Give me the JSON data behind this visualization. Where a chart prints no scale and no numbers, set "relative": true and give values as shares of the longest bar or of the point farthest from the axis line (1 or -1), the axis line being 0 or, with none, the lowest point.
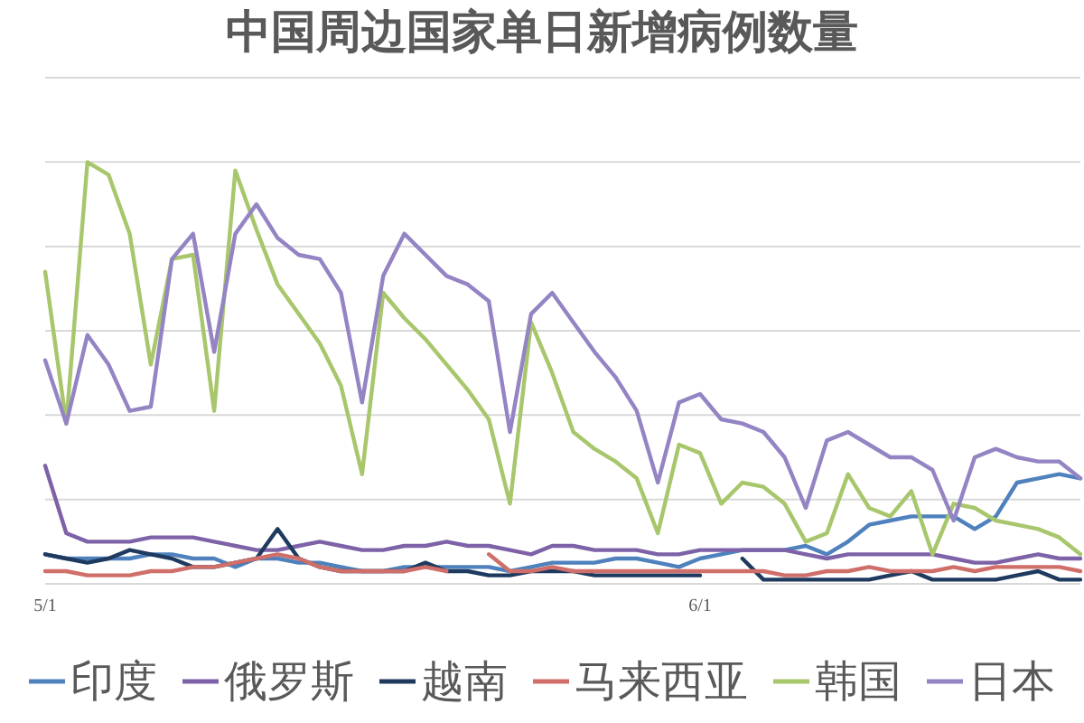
{
  "chart_data": {
    "type": "line",
    "title": "中国周边国家单日新增病例数量",
    "relative": true,
    "legend": "bottom",
    "grid": "y",
    "categories": [
      "5/1",
      null,
      null,
      null,
      null,
      null,
      null,
      null,
      null,
      null,
      null,
      null,
      null,
      null,
      null,
      null,
      null,
      null,
      null,
      null,
      null,
      null,
      null,
      null,
      null,
      null,
      null,
      null,
      null,
      null,
      null,
      "6/1",
      null,
      null,
      null,
      null,
      null,
      null,
      null,
      null,
      null,
      null,
      null,
      null,
      null,
      null,
      null,
      null,
      null,
      null
    ],
    "series": [
      {
        "name": "印度",
        "color": "#4f81bd",
        "values": [
          0.07,
          0.06,
          0.06,
          0.06,
          0.06,
          0.07,
          0.07,
          0.06,
          0.06,
          0.04,
          0.06,
          0.06,
          0.05,
          0.05,
          0.04,
          0.03,
          0.03,
          0.04,
          0.04,
          0.04,
          0.04,
          0.04,
          0.03,
          0.04,
          0.05,
          0.05,
          0.05,
          0.06,
          0.06,
          0.05,
          0.04,
          0.06,
          0.07,
          0.08,
          0.08,
          0.08,
          0.09,
          0.07,
          0.1,
          0.14,
          0.15,
          0.16,
          0.16,
          0.16,
          0.13,
          0.16,
          0.24,
          0.25,
          0.26,
          0.25
        ]
      },
      {
        "name": "俄罗斯",
        "color": "#7e62a8",
        "values": [
          0.28,
          0.12,
          0.1,
          0.1,
          0.1,
          0.11,
          0.11,
          0.11,
          0.1,
          0.09,
          0.08,
          0.08,
          0.09,
          0.1,
          0.09,
          0.08,
          0.08,
          0.09,
          0.09,
          0.1,
          0.09,
          0.09,
          0.08,
          0.07,
          0.09,
          0.09,
          0.08,
          0.08,
          0.08,
          0.07,
          0.07,
          0.08,
          0.08,
          0.08,
          0.08,
          0.08,
          0.07,
          0.06,
          0.07,
          0.07,
          0.07,
          0.07,
          0.07,
          0.06,
          0.05,
          0.05,
          0.06,
          0.07,
          0.06,
          0.06
        ]
      },
      {
        "name": "越南",
        "color": "#1f3a5f",
        "values": [
          0.07,
          0.06,
          0.05,
          0.06,
          0.08,
          0.07,
          0.06,
          0.04,
          0.04,
          0.05,
          0.06,
          0.13,
          0.06,
          0.04,
          0.03,
          0.03,
          0.03,
          0.03,
          0.05,
          0.03,
          0.03,
          0.02,
          0.02,
          0.03,
          0.03,
          0.03,
          0.02,
          0.02,
          0.02,
          0.02,
          0.02,
          0.02,
          null,
          0.06,
          0.01,
          0.01,
          0.01,
          0.01,
          0.01,
          0.01,
          0.02,
          0.03,
          0.01,
          0.01,
          0.01,
          0.01,
          0.02,
          0.03,
          0.01,
          0.01
        ]
      },
      {
        "name": "马来西亚",
        "color": "#d06f6a",
        "values": [
          0.03,
          0.03,
          0.02,
          0.02,
          0.02,
          0.03,
          0.03,
          0.04,
          0.04,
          0.05,
          0.06,
          0.07,
          0.06,
          0.04,
          0.03,
          0.03,
          0.03,
          0.03,
          0.04,
          0.03,
          null,
          0.07,
          0.03,
          0.03,
          0.04,
          0.03,
          0.03,
          0.03,
          0.03,
          0.03,
          0.03,
          0.03,
          0.03,
          0.03,
          0.03,
          0.02,
          0.02,
          0.03,
          0.03,
          0.04,
          0.03,
          0.03,
          0.03,
          0.04,
          0.03,
          0.04,
          0.04,
          0.04,
          0.04,
          0.03
        ]
      },
      {
        "name": "韩国",
        "color": "#a8c66c",
        "values": [
          0.74,
          0.38,
          1,
          0.97,
          0.83,
          0.52,
          0.77,
          0.78,
          0.41,
          0.98,
          0.84,
          0.71,
          0.64,
          0.57,
          0.47,
          0.26,
          0.69,
          0.63,
          0.58,
          0.52,
          0.46,
          0.39,
          0.19,
          0.62,
          0.5,
          0.36,
          0.32,
          0.29,
          0.25,
          0.12,
          0.33,
          0.31,
          0.19,
          0.24,
          0.23,
          0.19,
          0.1,
          0.12,
          0.26,
          0.18,
          0.16,
          0.22,
          0.07,
          0.19,
          0.18,
          0.15,
          0.14,
          0.13,
          0.11,
          0.07
        ]
      },
      {
        "name": "日本",
        "color": "#9484c4",
        "values": [
          0.53,
          0.38,
          0.59,
          0.52,
          0.41,
          0.42,
          0.77,
          0.83,
          0.55,
          0.83,
          0.9,
          0.82,
          0.78,
          0.77,
          0.69,
          0.43,
          0.73,
          0.83,
          0.78,
          0.73,
          0.71,
          0.67,
          0.36,
          0.64,
          0.69,
          0.62,
          0.55,
          0.49,
          0.41,
          0.24,
          0.43,
          0.45,
          0.39,
          0.38,
          0.36,
          0.3,
          0.18,
          0.34,
          0.36,
          0.33,
          0.3,
          0.3,
          0.27,
          0.15,
          0.3,
          0.32,
          0.3,
          0.29,
          0.29,
          0.25
        ]
      }
    ]
  }
}
